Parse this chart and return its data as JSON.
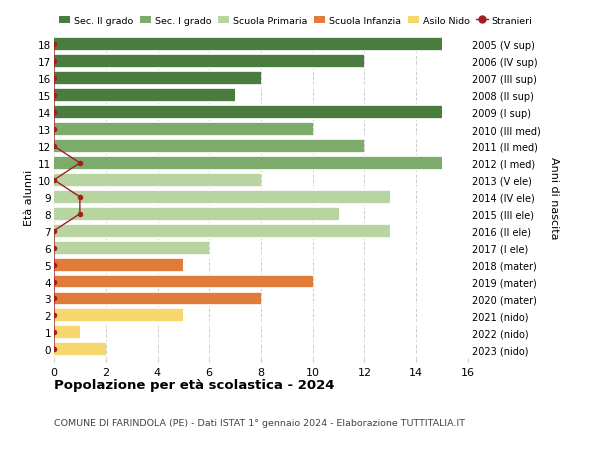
{
  "ages": [
    18,
    17,
    16,
    15,
    14,
    13,
    12,
    11,
    10,
    9,
    8,
    7,
    6,
    5,
    4,
    3,
    2,
    1,
    0
  ],
  "years": [
    "2005 (V sup)",
    "2006 (IV sup)",
    "2007 (III sup)",
    "2008 (II sup)",
    "2009 (I sup)",
    "2010 (III med)",
    "2011 (II med)",
    "2012 (I med)",
    "2013 (V ele)",
    "2014 (IV ele)",
    "2015 (III ele)",
    "2016 (II ele)",
    "2017 (I ele)",
    "2018 (mater)",
    "2019 (mater)",
    "2020 (mater)",
    "2021 (nido)",
    "2022 (nido)",
    "2023 (nido)"
  ],
  "bar_values": [
    15,
    12,
    8,
    7,
    15,
    10,
    12,
    15,
    8,
    13,
    11,
    13,
    6,
    5,
    10,
    8,
    5,
    1,
    2
  ],
  "bar_colors": [
    "#4a7c3f",
    "#4a7c3f",
    "#4a7c3f",
    "#4a7c3f",
    "#4a7c3f",
    "#7dab6b",
    "#7dab6b",
    "#7dab6b",
    "#b8d4a0",
    "#b8d4a0",
    "#b8d4a0",
    "#b8d4a0",
    "#b8d4a0",
    "#e07b39",
    "#e07b39",
    "#e07b39",
    "#f5d76e",
    "#f5d76e",
    "#f5d76e"
  ],
  "stranieri_x": [
    0,
    0,
    0,
    0,
    0,
    0,
    0,
    1,
    0,
    1,
    1,
    0,
    0,
    0,
    0,
    0,
    0,
    0,
    0
  ],
  "color_sec2": "#4a7c3f",
  "color_sec1": "#7dab6b",
  "color_prim": "#b8d4a0",
  "color_inf": "#e07b39",
  "color_nido": "#f5d76e",
  "color_stranieri": "#a02020",
  "legend_labels": [
    "Sec. II grado",
    "Sec. I grado",
    "Scuola Primaria",
    "Scuola Infanzia",
    "Asilo Nido",
    "Stranieri"
  ],
  "title": "Popolazione per età scolastica - 2024",
  "subtitle": "COMUNE DI FARINDOLA (PE) - Dati ISTAT 1° gennaio 2024 - Elaborazione TUTTITALIA.IT",
  "ylabel_left": "Età alunni",
  "ylabel_right": "Anni di nascita",
  "xlim": [
    0,
    16
  ],
  "xticks": [
    0,
    2,
    4,
    6,
    8,
    10,
    12,
    14,
    16
  ],
  "bg_color": "#ffffff",
  "grid_color": "#cccccc"
}
